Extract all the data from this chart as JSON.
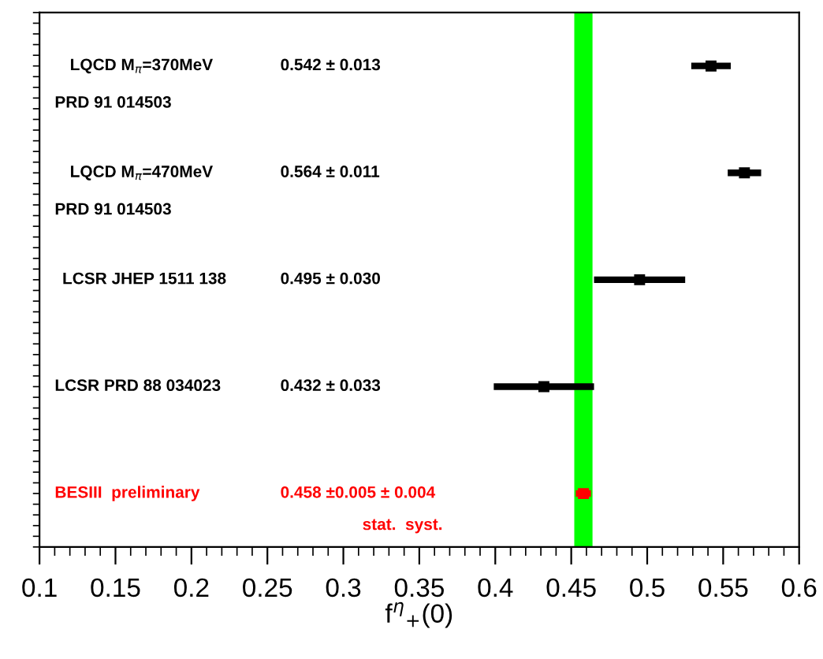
{
  "chart_data": {
    "type": "scatter",
    "orientation": "horizontal",
    "xlabel": "f$^{η}$$_{+}$(0)",
    "categories": [
      null,
      null,
      null,
      null,
      null
    ],
    "series": [
      {
        "color": "#000000",
        "values": [
          0.542,
          0.564,
          0.495,
          0.432,
          null
        ],
        "errors": [
          0.013,
          0.011,
          0.03,
          0.033,
          null
        ]
      },
      {
        "color": "#ff0000",
        "values": [
          null,
          null,
          null,
          null,
          0.458
        ],
        "errors": [
          null,
          null,
          null,
          null,
          0.005
        ]
      }
    ],
    "marker": "square",
    "xlim": [
      0.1,
      0.6
    ],
    "xticks": [
      0.1,
      0.15,
      0.2,
      0.25,
      0.3,
      0.35,
      0.4,
      0.45,
      0.5,
      0.55,
      0.6
    ],
    "tick_labels": "x",
    "grid": false,
    "legend": false,
    "bands": [
      {
        "axis": "x",
        "from": 0.452,
        "to": 0.464,
        "color": "#00ff00"
      }
    ],
    "annotations": [
      "LQCD M$_{π}$=370MeV",
      "PRD 91 014503",
      "0.542 ± 0.013",
      "LQCD M$_{π}$=470MeV",
      "PRD 91 014503",
      "0.564 ± 0.011",
      "LCSR JHEP 1511 138",
      "0.495 ± 0.030",
      "LCSR PRD 88 034023",
      "0.432 ± 0.033",
      "BESIII  preliminary",
      "0.458 ±0.005 ± 0.004",
      "stat.  syst."
    ]
  }
}
